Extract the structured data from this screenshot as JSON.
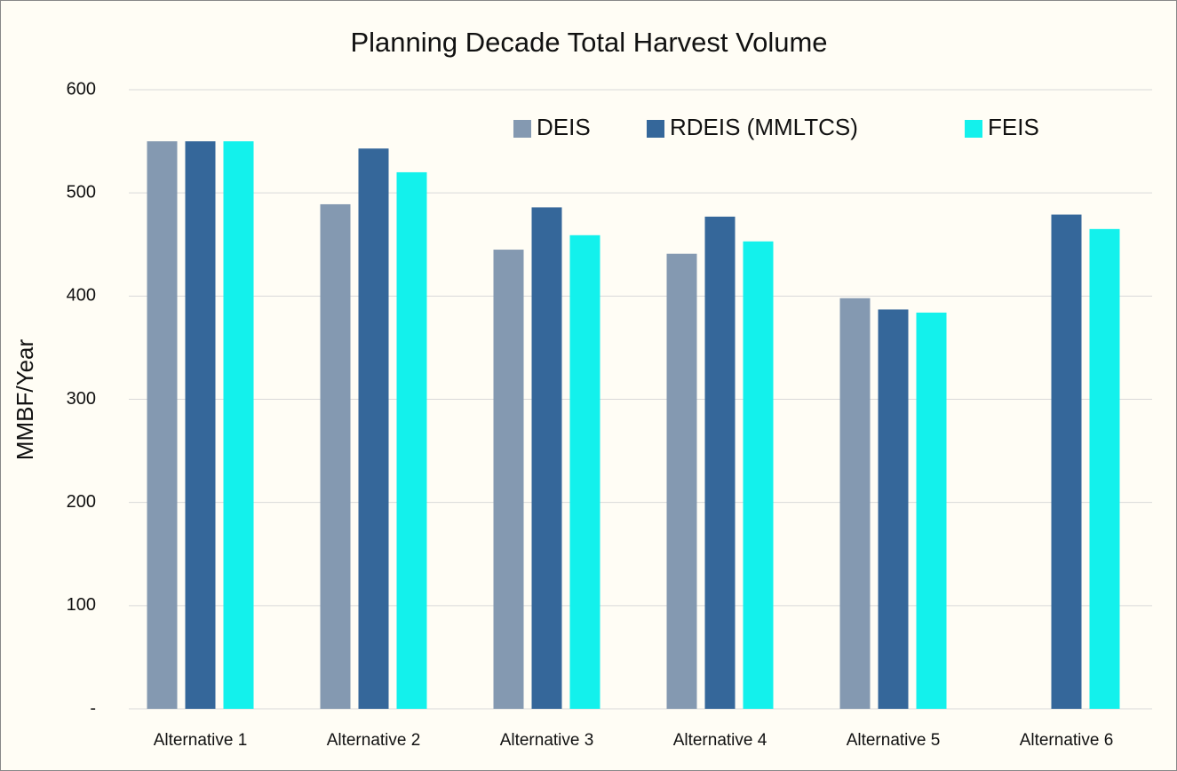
{
  "chart_data": {
    "type": "bar",
    "title": "Planning Decade Total Harvest Volume",
    "y_label": "MMBF/Year",
    "categories": [
      "Alternative 1",
      "Alternative 2",
      "Alternative 3",
      "Alternative 4",
      "Alternative 5",
      "Alternative 6"
    ],
    "series": [
      {
        "name": "DEIS",
        "color": "#8499b1",
        "values": [
          550,
          489,
          445,
          441,
          398,
          null
        ]
      },
      {
        "name": "RDEIS (MMLTCS)",
        "color": "#35679a",
        "values": [
          550,
          543,
          486,
          477,
          387,
          479
        ]
      },
      {
        "name": "FEIS",
        "color": "#13f1ec",
        "values": [
          550,
          520,
          459,
          453,
          384,
          465
        ]
      }
    ],
    "ylim": [
      0,
      600
    ],
    "yticks": [
      {
        "value": 0,
        "label": "-"
      },
      100,
      200,
      300,
      400,
      500,
      600
    ],
    "grid": true,
    "legend": "top-right"
  }
}
